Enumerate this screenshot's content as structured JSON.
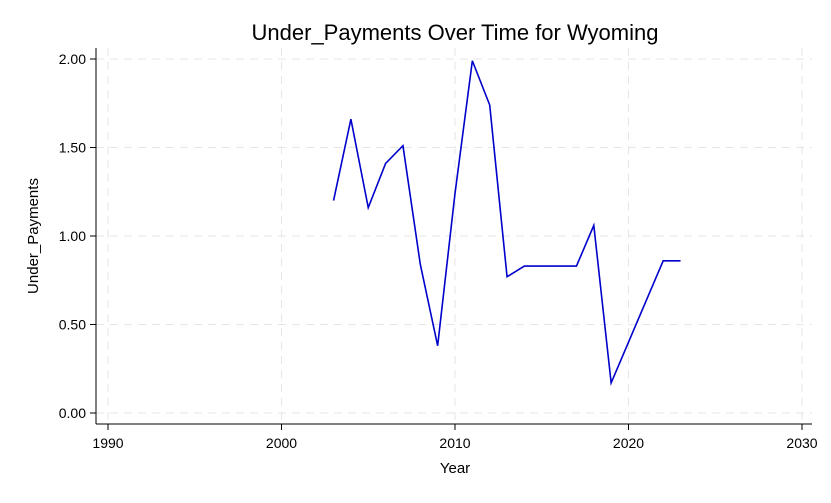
{
  "chart_data": {
    "type": "line",
    "title": "Under_Payments Over Time for Wyoming",
    "xlabel": "Year",
    "ylabel": "Under_Payments",
    "xlim": [
      1990,
      2030
    ],
    "ylim": [
      0,
      2
    ],
    "xticks": [
      1990,
      2000,
      2010,
      2020,
      2030
    ],
    "yticks": [
      0,
      0.5,
      1,
      1.5,
      2
    ],
    "ytick_labels": [
      "0.00",
      "0.50",
      "1.00",
      "1.50",
      "2.00"
    ],
    "grid": true,
    "legend": "none",
    "line_color": "#0000cc",
    "series": [
      {
        "x": [
          2003,
          2004,
          2005,
          2006,
          2007,
          2008,
          2009,
          2010,
          2011,
          2012,
          2013,
          2014,
          2015,
          2016,
          2017,
          2018,
          2019,
          2020,
          2021,
          2022,
          2023
        ],
        "values": [
          1.2,
          1.66,
          1.16,
          1.41,
          1.51,
          0.84,
          0.38,
          1.24,
          1.99,
          1.74,
          0.77,
          0.83,
          0.83,
          0.83,
          0.83,
          1.06,
          0.17,
          0.4,
          0.63,
          0.86,
          0.86
        ]
      }
    ]
  }
}
